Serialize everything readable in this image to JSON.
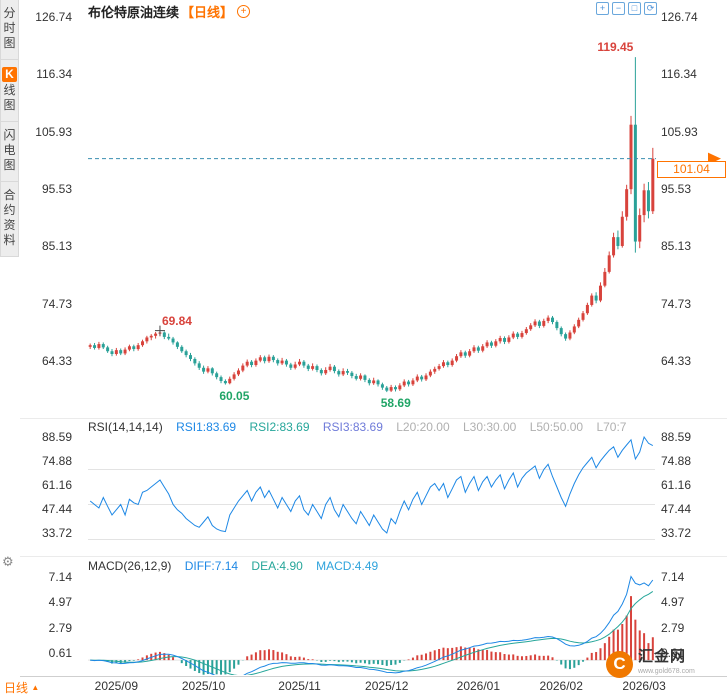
{
  "colors": {
    "up_red": "#d8433c",
    "down_green": "#2aa198",
    "accent": "#ff7300",
    "blue": "#1e88e5",
    "teal": "#26a69a",
    "slate": "#6f7bd9",
    "muted": "#b0b0b0",
    "axis_text": "#333333",
    "price_line": "#3a8fb0",
    "annotation_red": "#d8433c",
    "annotation_green": "#21a567"
  },
  "sidebar": {
    "tabs": [
      {
        "label": "分时图",
        "active": false
      },
      {
        "label": "K线图",
        "active": true
      },
      {
        "label": "闪电图",
        "active": false
      },
      {
        "label": "合约资料",
        "active": false
      }
    ]
  },
  "left_rail": {
    "gear_glyph": "⚙"
  },
  "header": {
    "title": "布伦特原油连续",
    "period_tag": "【日线】",
    "add_glyph": "+"
  },
  "toolbar": {
    "icons": [
      {
        "name": "zoom-in",
        "glyph": "+"
      },
      {
        "name": "zoom-out",
        "glyph": "−"
      },
      {
        "name": "box-zoom",
        "glyph": "□"
      },
      {
        "name": "reset-view",
        "glyph": "⟳"
      }
    ]
  },
  "current_price": {
    "text": "101.04",
    "value": 101.04
  },
  "rsi_header": {
    "name": "RSI(14,14,14)",
    "rsi1": "RSI1:83.69",
    "rsi2": "RSI2:83.69",
    "rsi3": "RSI3:83.69",
    "l20": "L20:20.00",
    "l30": "L30:30.00",
    "l50": "L50:50.00",
    "l70": "L70:7"
  },
  "macd_header": {
    "name": "MACD(26,12,9)",
    "diff": "DIFF:7.14",
    "dea": "DEA:4.90",
    "macd": "MACD:4.49"
  },
  "footer": {
    "period_label": "日线",
    "period_arrow": "▲",
    "logo_glyph": "C",
    "logo_text": "汇金网",
    "logo_url": "www.gold678.com"
  },
  "chart_data": {
    "type": "candlestick",
    "symbol": "布伦特原油连续",
    "period": "日线",
    "price_axis_labels": [
      "126.74",
      "116.34",
      "105.93",
      "95.53",
      "85.13",
      "74.73",
      "64.33"
    ],
    "x_ticks": [
      {
        "label": "2025/09",
        "bar": 6
      },
      {
        "label": "2025/10",
        "bar": 26
      },
      {
        "label": "2025/11",
        "bar": 48
      },
      {
        "label": "2025/12",
        "bar": 68
      },
      {
        "label": "2026/01",
        "bar": 89
      },
      {
        "label": "2026/02",
        "bar": 108
      },
      {
        "label": "2026/03",
        "bar": 127
      }
    ],
    "latest_price": 101.04,
    "annotations": [
      {
        "text": "69.84",
        "price": 69.84,
        "bar": 16,
        "color": "#d8433c",
        "marker": "cross",
        "placement": "above"
      },
      {
        "text": "60.05",
        "price": 60.05,
        "bar": 31,
        "color": "#21a567",
        "placement": "below"
      },
      {
        "text": "58.69",
        "price": 58.69,
        "bar": 68,
        "color": "#21a567",
        "placement": "below"
      },
      {
        "text": "119.45",
        "price": 119.45,
        "bar": 125,
        "color": "#d8433c",
        "placement": "above"
      }
    ],
    "ohlc": [
      [
        66.9,
        67.5,
        66.5,
        67.2
      ],
      [
        67.2,
        67.6,
        66.4,
        66.7
      ],
      [
        66.7,
        67.8,
        66.4,
        67.4
      ],
      [
        67.4,
        67.7,
        66.5,
        66.8
      ],
      [
        66.8,
        67.1,
        65.8,
        66.1
      ],
      [
        66.1,
        66.5,
        65.2,
        65.6
      ],
      [
        65.6,
        66.7,
        65.3,
        66.3
      ],
      [
        66.3,
        66.6,
        65.4,
        65.7
      ],
      [
        65.7,
        66.8,
        65.4,
        66.4
      ],
      [
        66.4,
        67.3,
        66.1,
        67.0
      ],
      [
        67.0,
        67.3,
        66.1,
        66.5
      ],
      [
        66.5,
        67.6,
        66.2,
        67.2
      ],
      [
        67.2,
        68.2,
        66.9,
        67.9
      ],
      [
        67.9,
        68.9,
        67.5,
        68.6
      ],
      [
        68.6,
        69.2,
        68.1,
        68.9
      ],
      [
        68.9,
        69.6,
        68.4,
        69.3
      ],
      [
        69.3,
        69.84,
        68.8,
        69.5
      ],
      [
        69.5,
        69.7,
        68.3,
        68.7
      ],
      [
        68.7,
        69.3,
        68.1,
        68.4
      ],
      [
        68.4,
        68.7,
        67.3,
        67.7
      ],
      [
        67.7,
        67.9,
        66.5,
        66.9
      ],
      [
        66.9,
        67.2,
        65.8,
        66.1
      ],
      [
        66.1,
        66.4,
        65.0,
        65.4
      ],
      [
        65.4,
        65.8,
        64.3,
        64.7
      ],
      [
        64.7,
        65.0,
        63.5,
        63.9
      ],
      [
        63.9,
        64.3,
        62.7,
        63.1
      ],
      [
        63.1,
        63.5,
        62.0,
        62.4
      ],
      [
        62.4,
        63.4,
        62.1,
        63.0
      ],
      [
        63.0,
        63.2,
        61.7,
        62.1
      ],
      [
        62.1,
        62.4,
        61.0,
        61.4
      ],
      [
        61.4,
        61.7,
        60.3,
        60.7
      ],
      [
        60.7,
        61.0,
        60.05,
        60.3
      ],
      [
        60.3,
        61.5,
        60.1,
        61.1
      ],
      [
        61.1,
        62.3,
        60.8,
        61.9
      ],
      [
        61.9,
        63.0,
        61.6,
        62.6
      ],
      [
        62.6,
        63.9,
        62.3,
        63.5
      ],
      [
        63.5,
        64.6,
        63.2,
        64.2
      ],
      [
        64.2,
        64.5,
        63.2,
        63.6
      ],
      [
        63.6,
        64.8,
        63.3,
        64.4
      ],
      [
        64.4,
        65.4,
        64.1,
        65.0
      ],
      [
        65.0,
        65.3,
        63.9,
        64.3
      ],
      [
        64.3,
        65.5,
        64.0,
        65.1
      ],
      [
        65.1,
        65.4,
        64.1,
        64.5
      ],
      [
        64.5,
        64.8,
        63.5,
        63.9
      ],
      [
        63.9,
        64.9,
        63.6,
        64.4
      ],
      [
        64.4,
        64.7,
        63.3,
        63.7
      ],
      [
        63.7,
        64.0,
        62.7,
        63.1
      ],
      [
        63.1,
        64.2,
        62.8,
        63.7
      ],
      [
        63.7,
        64.7,
        63.4,
        64.2
      ],
      [
        64.2,
        64.5,
        63.1,
        63.5
      ],
      [
        63.5,
        63.8,
        62.5,
        62.9
      ],
      [
        62.9,
        63.9,
        62.6,
        63.4
      ],
      [
        63.4,
        63.7,
        62.3,
        62.7
      ],
      [
        62.7,
        63.0,
        61.7,
        62.1
      ],
      [
        62.1,
        63.2,
        61.8,
        62.7
      ],
      [
        62.7,
        63.8,
        62.4,
        63.3
      ],
      [
        63.3,
        63.6,
        62.1,
        62.5
      ],
      [
        62.5,
        62.8,
        61.5,
        61.9
      ],
      [
        61.9,
        63.0,
        61.6,
        62.5
      ],
      [
        62.5,
        62.9,
        61.8,
        62.2
      ],
      [
        62.2,
        62.5,
        61.2,
        61.6
      ],
      [
        61.6,
        62.0,
        60.8,
        61.1
      ],
      [
        61.1,
        62.1,
        60.8,
        61.7
      ],
      [
        61.7,
        61.9,
        60.5,
        60.9
      ],
      [
        60.9,
        61.2,
        59.9,
        60.3
      ],
      [
        60.3,
        61.3,
        60.0,
        60.8
      ],
      [
        60.8,
        61.0,
        59.7,
        60.1
      ],
      [
        60.1,
        60.4,
        59.1,
        59.5
      ],
      [
        59.5,
        59.8,
        58.69,
        58.95
      ],
      [
        58.95,
        60.0,
        58.7,
        59.6
      ],
      [
        59.6,
        59.9,
        58.8,
        59.2
      ],
      [
        59.2,
        60.3,
        58.9,
        59.9
      ],
      [
        59.9,
        61.0,
        59.6,
        60.6
      ],
      [
        60.6,
        60.9,
        59.7,
        60.1
      ],
      [
        60.1,
        61.2,
        59.8,
        60.8
      ],
      [
        60.8,
        61.9,
        60.5,
        61.5
      ],
      [
        61.5,
        61.8,
        60.6,
        61.0
      ],
      [
        61.0,
        62.1,
        60.7,
        61.7
      ],
      [
        61.7,
        62.8,
        61.4,
        62.4
      ],
      [
        62.4,
        63.3,
        62.0,
        62.9
      ],
      [
        62.9,
        63.8,
        62.6,
        63.4
      ],
      [
        63.4,
        64.5,
        63.1,
        64.1
      ],
      [
        64.1,
        64.4,
        63.2,
        63.6
      ],
      [
        63.6,
        64.8,
        63.3,
        64.4
      ],
      [
        64.4,
        65.6,
        64.1,
        65.2
      ],
      [
        65.2,
        66.3,
        64.9,
        65.9
      ],
      [
        65.9,
        66.2,
        64.9,
        65.3
      ],
      [
        65.3,
        66.5,
        65.0,
        66.1
      ],
      [
        66.1,
        67.2,
        65.8,
        66.8
      ],
      [
        66.8,
        67.1,
        65.8,
        66.2
      ],
      [
        66.2,
        67.4,
        65.9,
        67.0
      ],
      [
        67.0,
        68.1,
        66.7,
        67.7
      ],
      [
        67.7,
        68.0,
        66.7,
        67.1
      ],
      [
        67.1,
        68.3,
        66.8,
        67.9
      ],
      [
        67.9,
        68.9,
        67.5,
        68.5
      ],
      [
        68.5,
        68.8,
        67.4,
        67.8
      ],
      [
        67.8,
        69.0,
        67.5,
        68.6
      ],
      [
        68.6,
        69.7,
        68.3,
        69.3
      ],
      [
        69.3,
        69.6,
        68.3,
        68.7
      ],
      [
        68.7,
        69.8,
        68.4,
        69.4
      ],
      [
        69.4,
        70.5,
        69.1,
        70.1
      ],
      [
        70.1,
        71.2,
        69.8,
        70.8
      ],
      [
        70.8,
        71.9,
        70.5,
        71.5
      ],
      [
        71.5,
        71.8,
        70.3,
        70.7
      ],
      [
        70.7,
        72.0,
        70.4,
        71.6
      ],
      [
        71.6,
        72.6,
        71.2,
        72.2
      ],
      [
        72.2,
        72.5,
        71.0,
        71.4
      ],
      [
        71.4,
        71.7,
        69.9,
        70.3
      ],
      [
        70.3,
        70.6,
        68.8,
        69.2
      ],
      [
        69.2,
        69.5,
        68.0,
        68.4
      ],
      [
        68.4,
        69.9,
        68.1,
        69.5
      ],
      [
        69.5,
        71.0,
        69.2,
        70.6
      ],
      [
        70.6,
        72.2,
        70.3,
        71.8
      ],
      [
        71.8,
        73.4,
        71.5,
        73.0
      ],
      [
        73.0,
        74.9,
        72.7,
        74.5
      ],
      [
        74.5,
        76.6,
        74.2,
        76.2
      ],
      [
        76.2,
        76.8,
        74.8,
        75.3
      ],
      [
        75.3,
        78.6,
        75.0,
        78.0
      ],
      [
        78.0,
        81.2,
        77.7,
        80.5
      ],
      [
        80.5,
        84.2,
        80.2,
        83.5
      ],
      [
        83.5,
        87.6,
        83.1,
        86.8
      ],
      [
        86.8,
        88.0,
        84.6,
        85.2
      ],
      [
        85.2,
        91.5,
        84.9,
        90.5
      ],
      [
        90.5,
        96.3,
        89.8,
        95.5
      ],
      [
        95.5,
        108.8,
        94.6,
        107.2
      ],
      [
        107.2,
        119.45,
        84.0,
        86.0
      ],
      [
        86.0,
        92.0,
        84.8,
        90.8
      ],
      [
        90.8,
        96.5,
        89.5,
        95.3
      ],
      [
        95.3,
        96.8,
        90.2,
        91.5
      ],
      [
        91.5,
        103.0,
        91.0,
        101.04
      ]
    ],
    "rsi_panel": {
      "y_labels": [
        "88.59",
        "74.88",
        "61.16",
        "47.44",
        "33.72"
      ],
      "grid_levels": [
        70,
        50,
        30
      ],
      "latest": {
        "rsi1": 83.69,
        "rsi2": 83.69,
        "rsi3": 83.69
      },
      "values": [
        52,
        50,
        48,
        54,
        49,
        44,
        47,
        50,
        44,
        53,
        51,
        50,
        57,
        58,
        60,
        62,
        64,
        60,
        56,
        50,
        47,
        45,
        42,
        40,
        38,
        37,
        40,
        43,
        38,
        36,
        35,
        34.5,
        44,
        48,
        52,
        55,
        58,
        52,
        57,
        60,
        54,
        58,
        53,
        48,
        54,
        50,
        46,
        52,
        55,
        47,
        44,
        50,
        46,
        42,
        50,
        54,
        47,
        43,
        50,
        46,
        42,
        39,
        46,
        42,
        38,
        44,
        40,
        36,
        33.72,
        42,
        39,
        46,
        52,
        47,
        53,
        57,
        50,
        55,
        60,
        62,
        58,
        62,
        54,
        59,
        64,
        66,
        57,
        62,
        66,
        58,
        63,
        66,
        60,
        64,
        67,
        59,
        64,
        68,
        60,
        65,
        68,
        70,
        72,
        65,
        70,
        73,
        66,
        60,
        54,
        49,
        56,
        62,
        67,
        71,
        74,
        77,
        71,
        75,
        78,
        81,
        83,
        77,
        81,
        84,
        87,
        76,
        80,
        88.59,
        85,
        83.69
      ]
    },
    "macd_panel": {
      "y_labels": [
        "7.14",
        "4.97",
        "2.79",
        "0.61"
      ],
      "params": {
        "slow": 26,
        "fast": 12,
        "signal": 9
      },
      "latest": {
        "diff": 7.14,
        "dea": 4.9,
        "macd": 4.49
      }
    }
  }
}
